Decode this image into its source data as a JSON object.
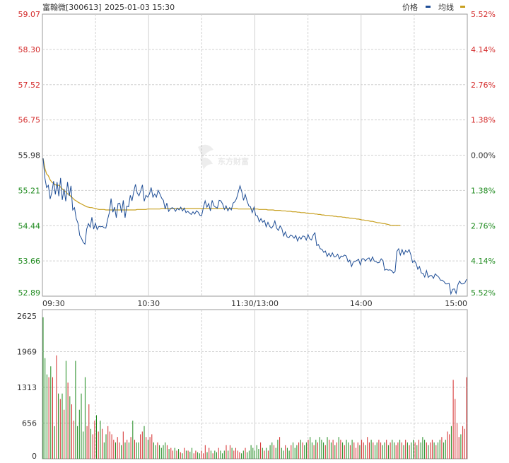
{
  "header": {
    "title": "富翰微[300613]",
    "datetime": "2025-01-03 15:30",
    "legend_price": "价格",
    "legend_avg": "均线"
  },
  "watermark": "东方财富",
  "colors": {
    "price_line": "#1f4e96",
    "avg_line": "#c8a020",
    "up": "#d42b2b",
    "down": "#1e8a1e",
    "grid": "#d0d0d0",
    "axis_text_neutral": "#333333"
  },
  "chart_data": [
    {
      "type": "line",
      "title": "富翰微[300613] 2025-01-03 15:30",
      "x_labels": [
        "09:30",
        "10:30",
        "11:30/13:00",
        "14:00",
        "15:00"
      ],
      "left_ticks": [
        "59.07",
        "58.30",
        "57.52",
        "56.75",
        "55.98",
        "55.21",
        "54.44",
        "53.66",
        "52.89"
      ],
      "right_ticks": [
        "5.52%",
        "4.14%",
        "2.76%",
        "1.38%",
        "0.00%",
        "1.38%",
        "2.76%",
        "4.14%",
        "5.52%"
      ],
      "ylim": [
        52.89,
        59.07
      ],
      "prev_close": 55.98,
      "grid": true,
      "legend_position": "top-right",
      "series": [
        {
          "name": "价格",
          "values": [
            55.91,
            55.48,
            55.27,
            55.32,
            55.02,
            55.16,
            55.41,
            55.12,
            55.39,
            55.08,
            55.48,
            55.0,
            55.24,
            54.97,
            55.39,
            55.09,
            55.31,
            54.78,
            54.83,
            54.59,
            54.49,
            54.22,
            54.16,
            54.07,
            54.03,
            54.36,
            54.48,
            54.4,
            54.62,
            54.36,
            54.49,
            54.35,
            54.42,
            54.41,
            54.42,
            54.39,
            54.38,
            54.57,
            54.72,
            55.03,
            54.73,
            54.84,
            54.61,
            54.92,
            54.93,
            54.72,
            54.99,
            54.61,
            54.86,
            54.85,
            55.1,
            54.98,
            55.18,
            55.34,
            55.15,
            55.09,
            55.2,
            55.33,
            54.97,
            55.1,
            55.06,
            55.13,
            55.27,
            55.06,
            55.13,
            55.06,
            55.21,
            55.13,
            55.04,
            54.99,
            54.8,
            54.93,
            54.75,
            54.8,
            54.83,
            54.81,
            54.75,
            54.82,
            54.78,
            54.84,
            54.76,
            54.82,
            54.72,
            54.75,
            54.71,
            54.68,
            54.74,
            54.69,
            54.76,
            54.73,
            54.66,
            54.66,
            54.84,
            54.98,
            54.84,
            54.92,
            54.76,
            54.99,
            54.87,
            54.84,
            54.82,
            54.99,
            54.98,
            54.91,
            54.79,
            54.87,
            54.76,
            54.83,
            54.78,
            54.93,
            54.96,
            55.03,
            55.17,
            55.31,
            55.18,
            54.99,
            55.12,
            54.98,
            54.87,
            54.85,
            54.72,
            54.84,
            54.66,
            54.65,
            54.52,
            54.59,
            54.51,
            54.55,
            54.41,
            54.51,
            54.42,
            54.38,
            54.43,
            54.54,
            54.38,
            54.33,
            54.43,
            54.37,
            54.21,
            54.3,
            54.19,
            54.17,
            54.23,
            54.21,
            54.16,
            54.22,
            54.1,
            54.19,
            54.14,
            54.21,
            54.2,
            54.12,
            54.24,
            54.15,
            54.12,
            54.23,
            54.28,
            54.0,
            54.02,
            53.93,
            53.92,
            53.85,
            53.88,
            53.76,
            53.83,
            53.76,
            53.84,
            53.75,
            53.76,
            53.81,
            53.71,
            53.77,
            53.76,
            53.79,
            53.77,
            53.64,
            53.68,
            53.54,
            53.64,
            53.65,
            53.67,
            53.7,
            53.58,
            53.71,
            53.71,
            53.66,
            53.71,
            53.73,
            53.65,
            53.75,
            53.66,
            53.65,
            53.62,
            53.63,
            53.71,
            53.67,
            53.46,
            53.48,
            53.46,
            53.47,
            53.45,
            53.4,
            53.43,
            53.87,
            53.93,
            53.79,
            53.91,
            53.8,
            53.89,
            53.85,
            53.91,
            53.8,
            53.63,
            53.67,
            53.61,
            53.48,
            53.54,
            53.4,
            53.39,
            53.31,
            53.45,
            53.3,
            53.34,
            53.34,
            53.28,
            53.38,
            53.34,
            53.31,
            53.24,
            53.24,
            53.21,
            53.16,
            53.16,
            53.17,
            52.94,
            53.04,
            53.05,
            52.95,
            53.14,
            53.22,
            53.16,
            53.16,
            53.18,
            53.26
          ]
        },
        {
          "name": "均线",
          "values": [
            55.91,
            55.69,
            55.57,
            55.53,
            55.44,
            55.39,
            55.36,
            55.33,
            55.32,
            55.32,
            55.28,
            55.24,
            55.2,
            55.18,
            55.13,
            55.12,
            55.07,
            55.04,
            55.0,
            54.98,
            54.95,
            54.93,
            54.91,
            54.89,
            54.87,
            54.85,
            54.84,
            54.83,
            54.83,
            54.82,
            54.81,
            54.8,
            54.79,
            54.79,
            54.79,
            54.79,
            54.78,
            54.78,
            54.78,
            54.78,
            54.78,
            54.78,
            54.78,
            54.78,
            54.78,
            54.78,
            54.78,
            54.78,
            54.78,
            54.78,
            54.78,
            54.78,
            54.78,
            54.78,
            54.79,
            54.79,
            54.79,
            54.79,
            54.79,
            54.79,
            54.8,
            54.8,
            54.8,
            54.8,
            54.8,
            54.8,
            54.8,
            54.8,
            54.81,
            54.81,
            54.81,
            54.81,
            54.81,
            54.81,
            54.81,
            54.81,
            54.81,
            54.81,
            54.81,
            54.81,
            54.81,
            54.81,
            54.81,
            54.81,
            54.81,
            54.81,
            54.81,
            54.81,
            54.81,
            54.81,
            54.81,
            54.81,
            54.81,
            54.81,
            54.81,
            54.81,
            54.81,
            54.81,
            54.81,
            54.81,
            54.81,
            54.81,
            54.81,
            54.81,
            54.81,
            54.81,
            54.81,
            54.81,
            54.81,
            54.81,
            54.81,
            54.81,
            54.8,
            54.8,
            54.8,
            54.8,
            54.8,
            54.8,
            54.8,
            54.8,
            54.8,
            54.8,
            54.8,
            54.8,
            54.79,
            54.79,
            54.79,
            54.79,
            54.79,
            54.78,
            54.78,
            54.78,
            54.78,
            54.77,
            54.77,
            54.77,
            54.77,
            54.76,
            54.76,
            54.76,
            54.75,
            54.75,
            54.75,
            54.74,
            54.74,
            54.74,
            54.73,
            54.73,
            54.72,
            54.72,
            54.72,
            54.71,
            54.71,
            54.7,
            54.7,
            54.7,
            54.69,
            54.69,
            54.68,
            54.68,
            54.67,
            54.67,
            54.66,
            54.66,
            54.66,
            54.65,
            54.65,
            54.64,
            54.64,
            54.63,
            54.63,
            54.63,
            54.62,
            54.62,
            54.61,
            54.61,
            54.6,
            54.6,
            54.59,
            54.59,
            54.58,
            54.58,
            54.57,
            54.56,
            54.56,
            54.55,
            54.55,
            54.54,
            54.53,
            54.53,
            54.52,
            54.51,
            54.5,
            54.5,
            54.49,
            54.48,
            54.48,
            54.47,
            54.46,
            54.45,
            54.44,
            54.44,
            54.44,
            54.44,
            54.44,
            54.44
          ]
        }
      ]
    },
    {
      "type": "bar",
      "y_ticks": [
        "2625",
        "1969",
        "1313",
        "656",
        "0"
      ],
      "ylim": [
        0,
        2625
      ],
      "grid": true,
      "series": [
        {
          "name": "",
          "values": [
            2600,
            1850,
            1550,
            1500,
            1700,
            1500,
            600,
            1900,
            1200,
            1100,
            1200,
            900,
            1800,
            1400,
            1150,
            1000,
            700,
            1800,
            600,
            900,
            1200,
            500,
            1500,
            600,
            1000,
            550,
            450,
            700,
            800,
            500,
            700,
            550,
            300,
            450,
            600,
            500,
            450,
            350,
            300,
            400,
            300,
            250,
            500,
            300,
            350,
            300,
            400,
            700,
            350,
            300,
            300,
            450,
            500,
            600,
            400,
            350,
            400,
            450,
            300,
            250,
            300,
            250,
            200,
            250,
            300,
            250,
            180,
            200,
            150,
            200,
            150,
            180,
            120,
            100,
            200,
            150,
            150,
            130,
            200,
            100,
            150,
            120,
            100,
            150,
            100,
            250,
            120,
            200,
            150,
            100,
            150,
            120,
            200,
            150,
            100,
            150,
            250,
            150,
            250,
            200,
            150,
            200,
            150,
            120,
            100,
            150,
            200,
            120,
            150,
            250,
            200,
            150,
            250,
            180,
            300,
            200,
            150,
            200,
            150,
            250,
            300,
            250,
            200,
            350,
            400,
            200,
            150,
            250,
            200,
            150,
            250,
            300,
            200,
            250,
            300,
            350,
            300,
            250,
            300,
            350,
            400,
            300,
            250,
            350,
            300,
            400,
            350,
            300,
            250,
            400,
            350,
            300,
            350,
            250,
            300,
            400,
            350,
            300,
            250,
            350,
            300,
            250,
            350,
            300,
            200,
            300,
            250,
            350,
            300,
            250,
            400,
            300,
            350,
            300,
            250,
            300,
            350,
            300,
            250,
            300,
            350,
            250,
            300,
            350,
            300,
            250,
            300,
            350,
            300,
            250,
            350,
            300,
            250,
            300,
            350,
            300,
            250,
            350,
            300,
            400,
            350,
            300,
            250,
            300,
            350,
            300,
            250,
            300,
            350,
            400,
            300,
            350,
            500,
            450,
            600,
            1450,
            1100,
            650,
            400,
            450,
            600,
            550,
            1500
          ]
        }
      ]
    }
  ]
}
